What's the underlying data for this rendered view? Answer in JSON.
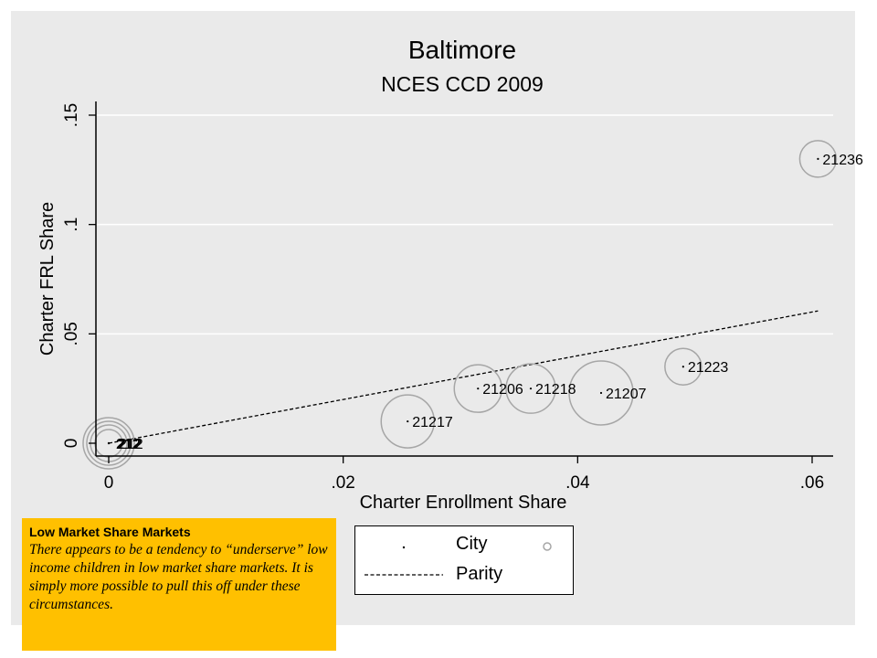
{
  "chart_data": {
    "type": "scatter",
    "title": "Baltimore",
    "subtitle": "NCES CCD 2009",
    "xlabel": "Charter Enrollment Share",
    "ylabel": "Charter FRL Share",
    "xlim": [
      0,
      0.0615
    ],
    "ylim": [
      -0.006,
      0.155
    ],
    "xticks": [
      0,
      0.02,
      0.04,
      0.06
    ],
    "xtick_labels": [
      "0",
      ".02",
      ".04",
      ".06"
    ],
    "yticks": [
      0,
      0.05,
      0.1,
      0.15
    ],
    "ytick_labels": [
      "0",
      ".05",
      ".1",
      ".15"
    ],
    "grid": "horizontal",
    "legend_placement": "below",
    "series": [
      {
        "name": "City",
        "marker": "dot",
        "points": [
          {
            "label": "21236",
            "x": 0.0605,
            "y": 0.13,
            "weight": 2.0
          },
          {
            "label": "21223",
            "x": 0.049,
            "y": 0.035,
            "weight": 2.0
          },
          {
            "label": "21207",
            "x": 0.042,
            "y": 0.023,
            "weight": 3.5
          },
          {
            "label": "21218",
            "x": 0.036,
            "y": 0.025,
            "weight": 2.7
          },
          {
            "label": "21206",
            "x": 0.0315,
            "y": 0.025,
            "weight": 2.6
          },
          {
            "label": "21217",
            "x": 0.0255,
            "y": 0.01,
            "weight": 2.9
          },
          {
            "label": "212",
            "x": 0.0,
            "y": 0.0,
            "weight": 2.8
          },
          {
            "label": "212",
            "x": 0.0,
            "y": 0.0,
            "weight": 2.4
          },
          {
            "label": "212",
            "x": 0.0,
            "y": 0.0,
            "weight": 2.0
          },
          {
            "label": "212",
            "x": 0.0,
            "y": 0.0,
            "weight": 1.5
          }
        ]
      },
      {
        "name": "Parity",
        "type": "line",
        "style": "dashed",
        "x": [
          0,
          0.0605
        ],
        "y": [
          0,
          0.0605
        ]
      }
    ],
    "colors": {
      "circle": "#a6a6a6",
      "background": "#eaeaea",
      "grid": "#ffffff",
      "note": "#ffc000"
    }
  },
  "legend": {
    "city_label": "City",
    "parity_label": "Parity"
  },
  "note": {
    "title": "Low Market Share Markets",
    "body": "There appears to be a tendency to “underserve” low income children in low market share markets. It is simply more possible to pull this off under these circumstances."
  }
}
